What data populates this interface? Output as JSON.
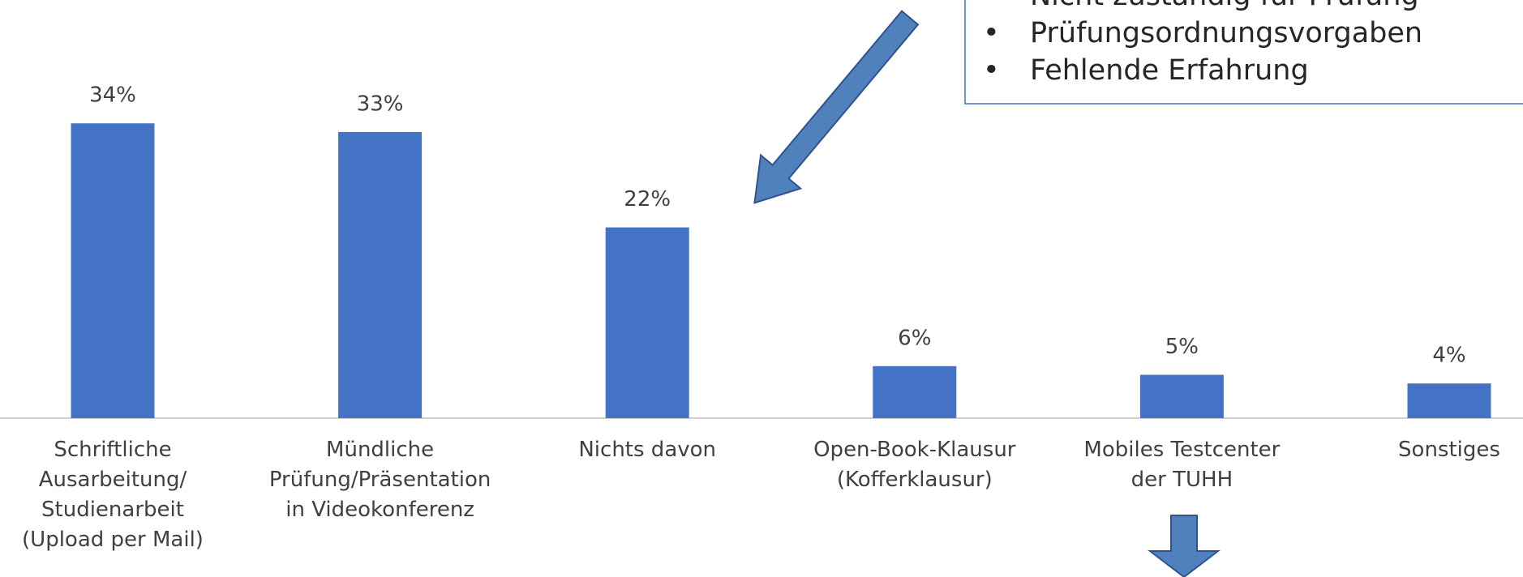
{
  "chart_data": {
    "type": "bar",
    "categories": [
      "Schriftliche\nAusarbeitung/\nStudienarbeit\n(Upload per Mail)",
      "Mündliche\nPrüfung/Präsentation\nin Videokonferenz",
      "Nichts davon",
      "Open-Book-Klausur\n(Kofferklausur)",
      "Mobiles Testcenter\nder TUHH",
      "Sonstiges"
    ],
    "values": [
      34,
      33,
      22,
      6,
      5,
      4
    ],
    "value_labels": [
      "34%",
      "33%",
      "22%",
      "6%",
      "5%",
      "4%"
    ],
    "color": "#4472c4",
    "annotation": {
      "items": [
        "Nicht zuständig für Prüfung",
        "Prüfungsordnungsvorgaben",
        "Fehlende Erfahrung"
      ]
    }
  }
}
